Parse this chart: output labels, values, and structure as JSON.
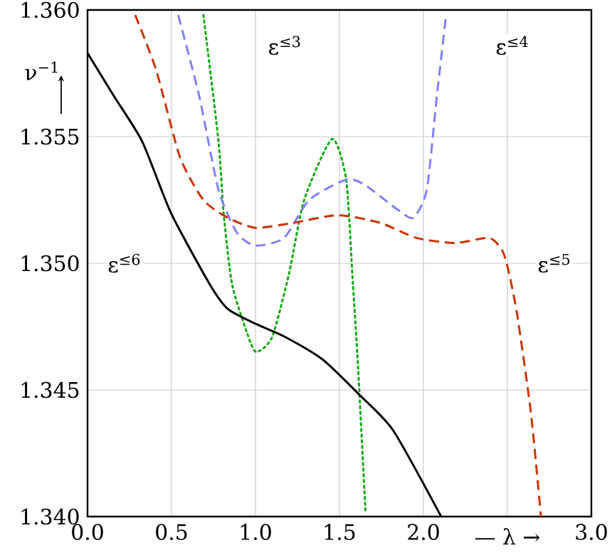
{
  "chart_data": {
    "type": "line",
    "xlabel": "— λ →",
    "ylabel": "ν$^{−1}$",
    "xlim": [
      0,
      3
    ],
    "ylim": [
      1.34,
      1.36
    ],
    "xticks": [
      {
        "value": 0,
        "label": "0.0"
      },
      {
        "value": 0.5,
        "label": "0.5"
      },
      {
        "value": 1,
        "label": "1.0"
      },
      {
        "value": 1.5,
        "label": "1.5"
      },
      {
        "value": 2,
        "label": "2.0"
      },
      {
        "value": 2.5,
        "label": null
      },
      {
        "value": 3,
        "label": "3.0"
      }
    ],
    "yticks": [
      {
        "value": 1.34,
        "label": "1.340"
      },
      {
        "value": 1.345,
        "label": "1.345"
      },
      {
        "value": 1.35,
        "label": "1.350"
      },
      {
        "value": 1.355,
        "label": "1.355"
      },
      {
        "value": 1.36,
        "label": "1.360"
      }
    ],
    "grid": true,
    "legend": false,
    "marker": "none",
    "series": [
      {
        "name": "ε$^{≤3}$",
        "color": "#11aa11",
        "line_style": "dotted",
        "x": [
          0.69,
          0.78,
          0.81,
          0.86,
          0.947,
          1.004,
          1.1,
          1.2,
          1.29,
          1.455,
          1.54,
          1.58,
          1.61,
          1.655
        ],
        "values": [
          1.3598,
          1.3548,
          1.352,
          1.3492,
          1.3473,
          1.3465,
          1.3471,
          1.3496,
          1.3525,
          1.3549,
          1.3533,
          1.3492,
          1.346,
          1.3402
        ]
      },
      {
        "name": "ε$^{≤4}$",
        "color": "#8080ff",
        "line_style": "dashed",
        "x": [
          0.54,
          0.665,
          0.78,
          0.89,
          1.0,
          1.17,
          1.32,
          1.54,
          1.65,
          1.85,
          1.94,
          2.02,
          2.08,
          2.135
        ],
        "values": [
          1.3598,
          1.3566,
          1.3529,
          1.3512,
          1.3507,
          1.351,
          1.3525,
          1.3533,
          1.3531,
          1.3521,
          1.3518,
          1.3529,
          1.3566,
          1.3598
        ]
      },
      {
        "name": "ε$^{≤5}$",
        "color": "#cc3300",
        "line_style": "dashed",
        "x": [
          0.284,
          0.41,
          0.55,
          0.69,
          0.835,
          1.0,
          1.23,
          1.49,
          1.74,
          1.96,
          2.19,
          2.39,
          2.47,
          2.51,
          2.56,
          2.64,
          2.7
        ],
        "values": [
          1.3598,
          1.3576,
          1.3542,
          1.3525,
          1.3518,
          1.3514,
          1.3516,
          1.3519,
          1.3516,
          1.351,
          1.3508,
          1.351,
          1.3505,
          1.3496,
          1.3479,
          1.3441,
          1.34
        ]
      },
      {
        "name": "ε$^{≤6}$",
        "color": "#000000",
        "line_style": "solid",
        "x": [
          0.0,
          0.157,
          0.326,
          0.496,
          0.725,
          0.835,
          1.004,
          1.174,
          1.4,
          1.62,
          1.82,
          2.106
        ],
        "values": [
          1.3583,
          1.3566,
          1.3548,
          1.352,
          1.3492,
          1.3482,
          1.3476,
          1.3471,
          1.3462,
          1.3448,
          1.3434,
          1.34
        ]
      }
    ]
  }
}
